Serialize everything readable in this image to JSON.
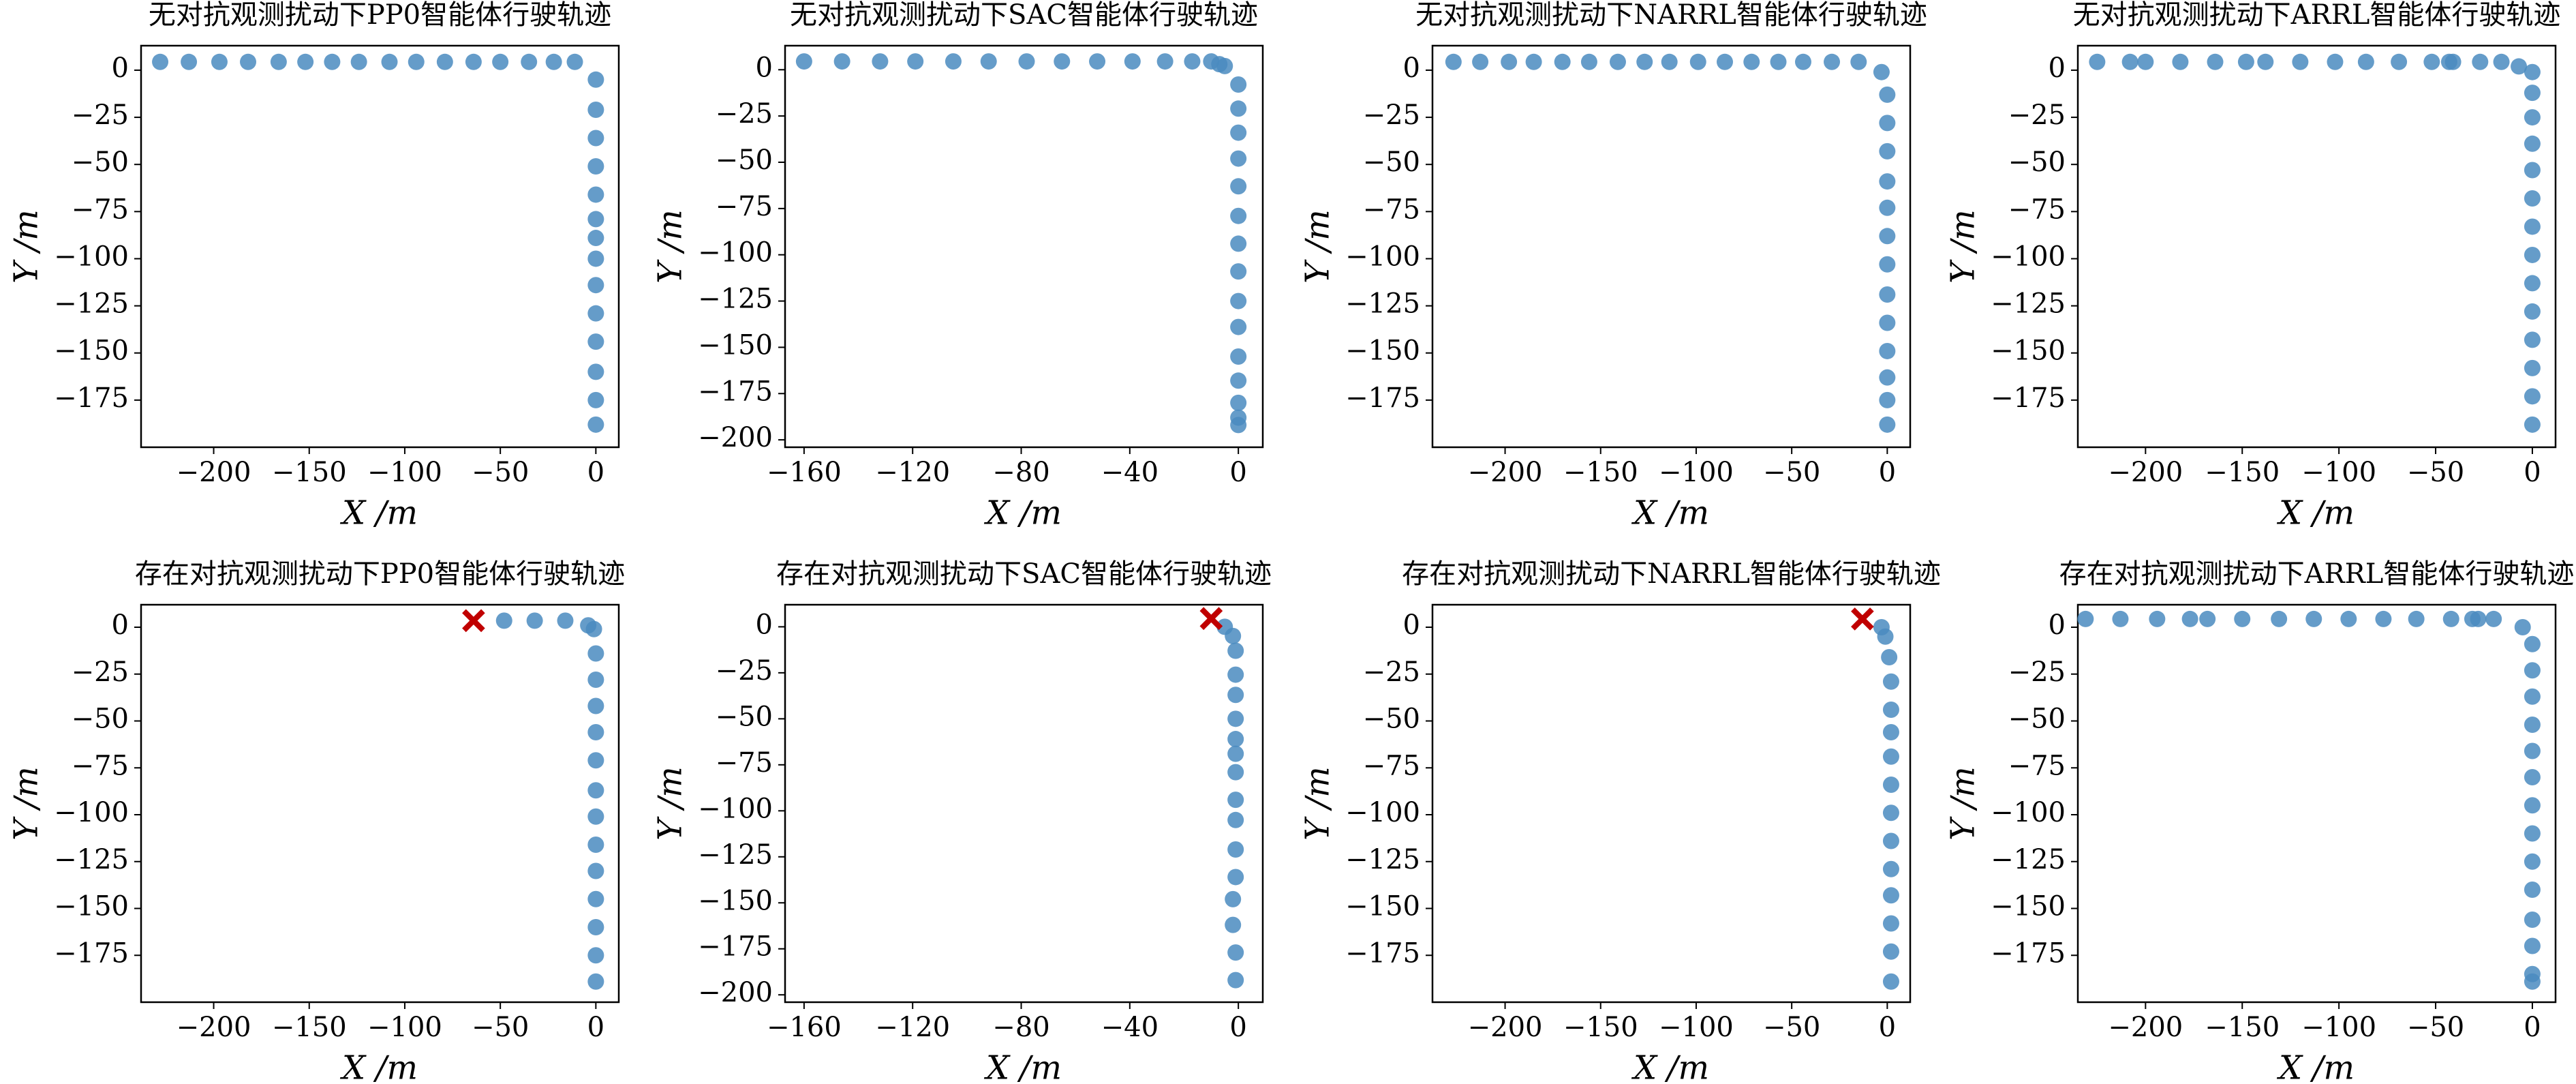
{
  "chart_data": [
    {
      "type": "scatter",
      "title": "无对抗观测扰动下PP0智能体行驶轨迹",
      "x_label": "X /m",
      "y_label": "Y /m",
      "xlim": [
        -238,
        12
      ],
      "ylim": [
        -200,
        13
      ],
      "xticks": [
        {
          "value": -200,
          "label": "−200"
        },
        {
          "value": -150,
          "label": "−150"
        },
        {
          "value": -100,
          "label": "−100"
        },
        {
          "value": -50,
          "label": "−50"
        },
        0
      ],
      "yticks": [
        0,
        {
          "value": -25,
          "label": "−25"
        },
        {
          "value": -50,
          "label": "−50"
        },
        {
          "value": -75,
          "label": "−75"
        },
        {
          "value": -100,
          "label": "−100"
        },
        {
          "value": -125,
          "label": "−125"
        },
        {
          "value": -150,
          "label": "−150"
        },
        {
          "value": -175,
          "label": "−175"
        }
      ],
      "series": [
        {
          "color": "#4a8bbf",
          "x": [
            -228,
            -213,
            -197,
            -182,
            -166,
            -152,
            -138,
            -124,
            -108,
            -94,
            -79,
            -64,
            -50,
            -35,
            -22,
            -11,
            0,
            0,
            0,
            0,
            0,
            0,
            0,
            0,
            0,
            0,
            0,
            0,
            0,
            0
          ],
          "y": [
            4.4,
            4.4,
            4.4,
            4.4,
            4.4,
            4.4,
            4.4,
            4.4,
            4.4,
            4.4,
            4.4,
            4.4,
            4.4,
            4.4,
            4.4,
            4.4,
            -5,
            -21,
            -36,
            -51,
            -66,
            -79,
            -89,
            -100,
            -114,
            -129,
            -144,
            -160,
            -175,
            -188
          ]
        }
      ]
    },
    {
      "type": "scatter",
      "title": "无对抗观测扰动下SAC智能体行驶轨迹",
      "x_label": "X /m",
      "y_label": "Y /m",
      "xlim": [
        -167,
        9
      ],
      "ylim": [
        -204,
        13
      ],
      "xticks": [
        {
          "value": -160,
          "label": "−160"
        },
        {
          "value": -120,
          "label": "−120"
        },
        {
          "value": -80,
          "label": "−80"
        },
        {
          "value": -40,
          "label": "−40"
        },
        0
      ],
      "yticks": [
        0,
        {
          "value": -25,
          "label": "−25"
        },
        {
          "value": -50,
          "label": "−50"
        },
        {
          "value": -75,
          "label": "−75"
        },
        {
          "value": -100,
          "label": "−100"
        },
        {
          "value": -125,
          "label": "−125"
        },
        {
          "value": -150,
          "label": "−150"
        },
        {
          "value": -175,
          "label": "−175"
        },
        {
          "value": -200,
          "label": "−200"
        }
      ],
      "series": [
        {
          "color": "#4a8bbf",
          "x": [
            -160,
            -146,
            -132,
            -119,
            -105,
            -92,
            -78,
            -65,
            -52,
            -39,
            -27,
            -17,
            -10,
            -7,
            -5,
            0,
            0,
            0,
            0,
            0,
            0,
            0,
            0,
            0,
            0,
            0,
            0,
            0,
            0,
            0
          ],
          "y": [
            4.5,
            4.5,
            4.5,
            4.5,
            4.5,
            4.5,
            4.5,
            4.5,
            4.5,
            4.5,
            4.5,
            4.5,
            4.5,
            3,
            2,
            -8,
            -21,
            -34,
            -48,
            -63,
            -79,
            -94,
            -109,
            -125,
            -139,
            -155,
            -168,
            -180,
            -188,
            -192
          ]
        }
      ]
    },
    {
      "type": "scatter",
      "title": "无对抗观测扰动下NARRL智能体行驶轨迹",
      "x_label": "X /m",
      "y_label": "Y /m",
      "xlim": [
        -238,
        12
      ],
      "ylim": [
        -200,
        13
      ],
      "xticks": [
        {
          "value": -200,
          "label": "−200"
        },
        {
          "value": -150,
          "label": "−150"
        },
        {
          "value": -100,
          "label": "−100"
        },
        {
          "value": -50,
          "label": "−50"
        },
        0
      ],
      "yticks": [
        0,
        {
          "value": -25,
          "label": "−25"
        },
        {
          "value": -50,
          "label": "−50"
        },
        {
          "value": -75,
          "label": "−75"
        },
        {
          "value": -100,
          "label": "−100"
        },
        {
          "value": -125,
          "label": "−125"
        },
        {
          "value": -150,
          "label": "−150"
        },
        {
          "value": -175,
          "label": "−175"
        }
      ],
      "series": [
        {
          "color": "#4a8bbf",
          "x": [
            -227,
            -213,
            -198,
            -185,
            -170,
            -156,
            -141,
            -127,
            -114,
            -99,
            -85,
            -71,
            -57,
            -44,
            -29,
            -15,
            -3,
            0,
            0,
            0,
            0,
            0,
            0,
            0,
            0,
            0,
            0,
            0,
            0,
            0
          ],
          "y": [
            4.4,
            4.4,
            4.4,
            4.4,
            4.4,
            4.4,
            4.4,
            4.4,
            4.4,
            4.4,
            4.4,
            4.4,
            4.4,
            4.4,
            4.4,
            4.4,
            -1,
            -13,
            -28,
            -43,
            -59,
            -73,
            -88,
            -103,
            -119,
            -134,
            -149,
            -163,
            -175,
            -188
          ]
        }
      ]
    },
    {
      "type": "scatter",
      "title": "无对抗观测扰动下ARRL智能体行驶轨迹",
      "x_label": "X /m",
      "y_label": "Y /m",
      "xlim": [
        -235,
        12
      ],
      "ylim": [
        -200,
        13
      ],
      "xticks": [
        {
          "value": -200,
          "label": "−200"
        },
        {
          "value": -150,
          "label": "−150"
        },
        {
          "value": -100,
          "label": "−100"
        },
        {
          "value": -50,
          "label": "−50"
        },
        0
      ],
      "yticks": [
        0,
        {
          "value": -25,
          "label": "−25"
        },
        {
          "value": -50,
          "label": "−50"
        },
        {
          "value": -75,
          "label": "−75"
        },
        {
          "value": -100,
          "label": "−100"
        },
        {
          "value": -125,
          "label": "−125"
        },
        {
          "value": -150,
          "label": "−150"
        },
        {
          "value": -175,
          "label": "−175"
        }
      ],
      "series": [
        {
          "color": "#4a8bbf",
          "x": [
            -225,
            -208,
            -200,
            -182,
            -164,
            -148,
            -138,
            -120,
            -102,
            -86,
            -69,
            -52,
            -43,
            -41,
            -27,
            -16,
            -7,
            0,
            0,
            0,
            0,
            0,
            0,
            0,
            0,
            0,
            0,
            0,
            0,
            0,
            0
          ],
          "y": [
            4.4,
            4.4,
            4.4,
            4.4,
            4.4,
            4.4,
            4.4,
            4.4,
            4.4,
            4.4,
            4.4,
            4.4,
            4.4,
            4.4,
            4.4,
            4.4,
            2,
            -1,
            -12,
            -25,
            -39,
            -53,
            -68,
            -83,
            -98,
            -113,
            -128,
            -143,
            -158,
            -173,
            -188
          ]
        }
      ]
    },
    {
      "type": "scatter",
      "title": "存在对抗观测扰动下PP0智能体行驶轨迹",
      "x_label": "X /m",
      "y_label": "Y /m",
      "xlim": [
        -238,
        12
      ],
      "ylim": [
        -200,
        12
      ],
      "xticks": [
        {
          "value": -200,
          "label": "−200"
        },
        {
          "value": -150,
          "label": "−150"
        },
        {
          "value": -100,
          "label": "−100"
        },
        {
          "value": -50,
          "label": "−50"
        },
        0
      ],
      "yticks": [
        0,
        {
          "value": -25,
          "label": "−25"
        },
        {
          "value": -50,
          "label": "−50"
        },
        {
          "value": -75,
          "label": "−75"
        },
        {
          "value": -100,
          "label": "−100"
        },
        {
          "value": -125,
          "label": "−125"
        },
        {
          "value": -150,
          "label": "−150"
        },
        {
          "value": -175,
          "label": "−175"
        }
      ],
      "series": [
        {
          "color": "#4a8bbf",
          "x": [
            -48,
            -32,
            -16,
            -4,
            -1,
            0,
            0,
            0,
            0,
            0,
            0,
            0,
            0,
            0,
            0,
            0,
            0,
            0
          ],
          "y": [
            3.5,
            3.5,
            3.5,
            1,
            -1,
            -14,
            -28,
            -42,
            -56,
            -71,
            -87,
            -101,
            -116,
            -130,
            -145,
            -160,
            -175,
            -189
          ]
        },
        {
          "color": "#c00000",
          "marker": "x",
          "x": [
            -64
          ],
          "y": [
            3.5
          ]
        }
      ]
    },
    {
      "type": "scatter",
      "title": "存在对抗观测扰动下SAC智能体行驶轨迹",
      "x_label": "X /m",
      "y_label": "Y /m",
      "xlim": [
        -167,
        9
      ],
      "ylim": [
        -204,
        12
      ],
      "xticks": [
        {
          "value": -160,
          "label": "−160"
        },
        {
          "value": -120,
          "label": "−120"
        },
        {
          "value": -80,
          "label": "−80"
        },
        {
          "value": -40,
          "label": "−40"
        },
        0
      ],
      "yticks": [
        0,
        {
          "value": -25,
          "label": "−25"
        },
        {
          "value": -50,
          "label": "−50"
        },
        {
          "value": -75,
          "label": "−75"
        },
        {
          "value": -100,
          "label": "−100"
        },
        {
          "value": -125,
          "label": "−125"
        },
        {
          "value": -150,
          "label": "−150"
        },
        {
          "value": -175,
          "label": "−175"
        },
        {
          "value": -200,
          "label": "−200"
        }
      ],
      "series": [
        {
          "color": "#4a8bbf",
          "x": [
            -5,
            -2,
            -1,
            -1,
            -1,
            -1,
            -1,
            -1,
            -1,
            -1,
            -1,
            -1,
            -1,
            -2,
            -2,
            -1,
            -1
          ],
          "y": [
            0,
            -5,
            -13,
            -26,
            -37,
            -50,
            -61,
            -69,
            -79,
            -94,
            -105,
            -121,
            -136,
            -148,
            -162,
            -177,
            -192
          ]
        },
        {
          "color": "#c00000",
          "marker": "x",
          "x": [
            -10
          ],
          "y": [
            4.5
          ]
        }
      ]
    },
    {
      "type": "scatter",
      "title": "存在对抗观测扰动下NARRL智能体行驶轨迹",
      "x_label": "X /m",
      "y_label": "Y /m",
      "xlim": [
        -238,
        12
      ],
      "ylim": [
        -200,
        12
      ],
      "xticks": [
        {
          "value": -200,
          "label": "−200"
        },
        {
          "value": -150,
          "label": "−150"
        },
        {
          "value": -100,
          "label": "−100"
        },
        {
          "value": -50,
          "label": "−50"
        },
        0
      ],
      "yticks": [
        0,
        {
          "value": -25,
          "label": "−25"
        },
        {
          "value": -50,
          "label": "−50"
        },
        {
          "value": -75,
          "label": "−75"
        },
        {
          "value": -100,
          "label": "−100"
        },
        {
          "value": -125,
          "label": "−125"
        },
        {
          "value": -150,
          "label": "−150"
        },
        {
          "value": -175,
          "label": "−175"
        }
      ],
      "series": [
        {
          "color": "#4a8bbf",
          "x": [
            -3,
            -1,
            1,
            2,
            2,
            2,
            2,
            2,
            2,
            2,
            2,
            2,
            2,
            2,
            2
          ],
          "y": [
            0,
            -5,
            -16,
            -29,
            -44,
            -56,
            -69,
            -84,
            -99,
            -114,
            -129,
            -143,
            -158,
            -173,
            -189
          ]
        },
        {
          "color": "#c00000",
          "marker": "x",
          "x": [
            -13
          ],
          "y": [
            4.4
          ]
        }
      ]
    },
    {
      "type": "scatter",
      "title": "存在对抗观测扰动下ARRL智能体行驶轨迹",
      "x_label": "X /m",
      "y_label": "Y /m",
      "xlim": [
        -235,
        12
      ],
      "ylim": [
        -200,
        12
      ],
      "xticks": [
        {
          "value": -200,
          "label": "−200"
        },
        {
          "value": -150,
          "label": "−150"
        },
        {
          "value": -100,
          "label": "−100"
        },
        {
          "value": -50,
          "label": "−50"
        },
        0
      ],
      "yticks": [
        0,
        {
          "value": -25,
          "label": "−25"
        },
        {
          "value": -50,
          "label": "−50"
        },
        {
          "value": -75,
          "label": "−75"
        },
        {
          "value": -100,
          "label": "−100"
        },
        {
          "value": -125,
          "label": "−125"
        },
        {
          "value": -150,
          "label": "−150"
        },
        {
          "value": -175,
          "label": "−175"
        }
      ],
      "series": [
        {
          "color": "#4a8bbf",
          "x": [
            -231,
            -213,
            -194,
            -177,
            -168,
            -150,
            -131,
            -113,
            -95,
            -77,
            -60,
            -42,
            -31,
            -28,
            -20,
            -5,
            0,
            0,
            0,
            0,
            0,
            0,
            0,
            0,
            0,
            0,
            0,
            0,
            0,
            0
          ],
          "y": [
            4.4,
            4.4,
            4.4,
            4.4,
            4.4,
            4.4,
            4.4,
            4.4,
            4.4,
            4.4,
            4.4,
            4.4,
            4.4,
            4.4,
            4.4,
            0,
            -9,
            -23,
            -37,
            -52,
            -66,
            -80,
            -95,
            -110,
            -125,
            -140,
            -156,
            -170,
            -185,
            -189
          ]
        }
      ]
    }
  ]
}
